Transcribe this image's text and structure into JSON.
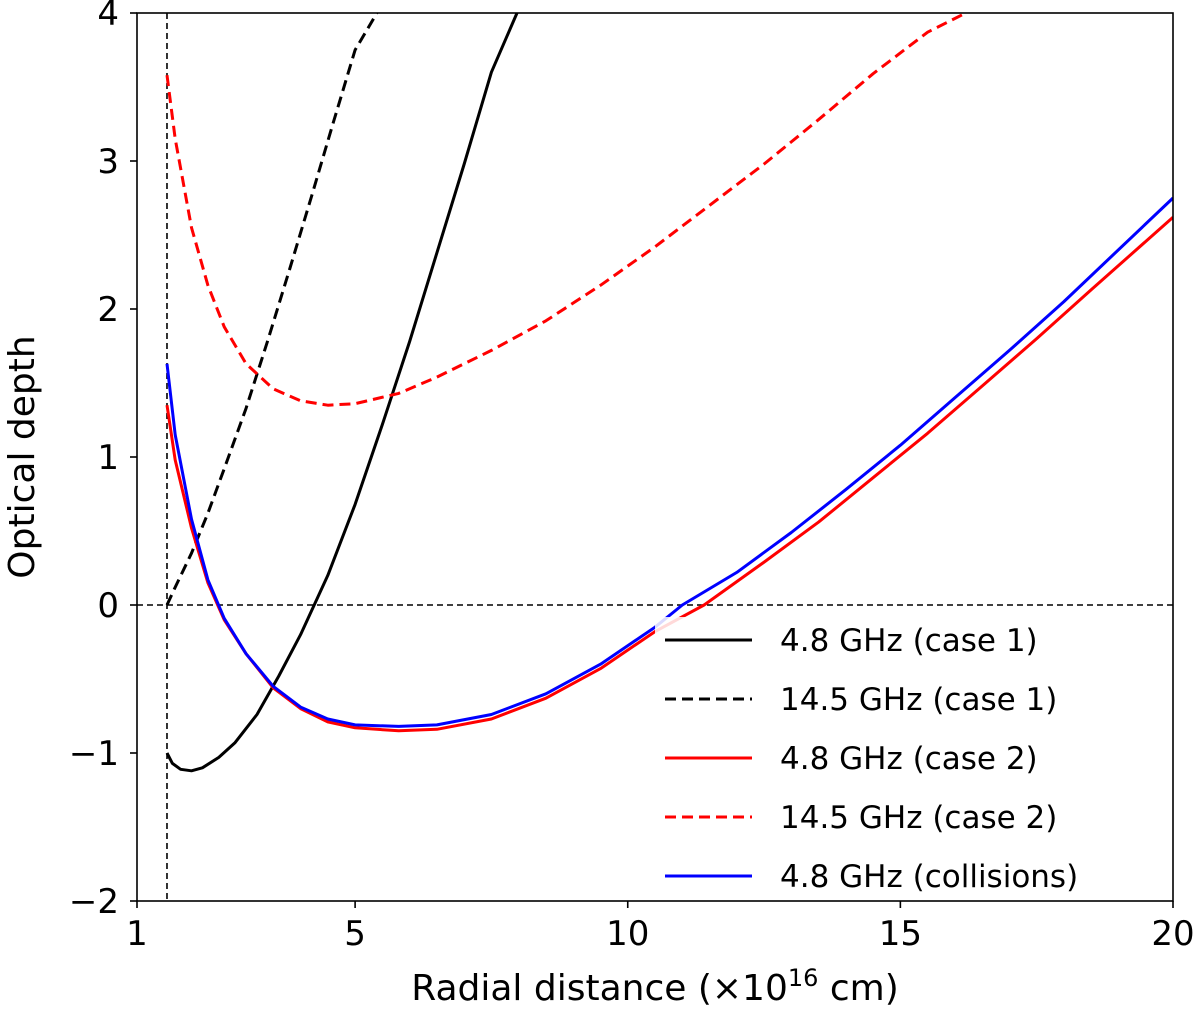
{
  "chart_data": {
    "type": "line",
    "title": "",
    "xlabel_main": "Radial distance (×10",
    "xlabel_exp": "16",
    "xlabel_unit": " cm)",
    "ylabel": "Optical depth",
    "xlim": [
      1,
      20
    ],
    "ylim": [
      -2,
      4
    ],
    "xticks": [
      1,
      5,
      10,
      15,
      20
    ],
    "xtick_labels": [
      "1",
      "5",
      "10",
      "15",
      "20"
    ],
    "yticks": [
      -2,
      -1,
      0,
      1,
      2,
      3,
      4
    ],
    "ytick_labels": [
      "−2",
      "−1",
      "0",
      "1",
      "2",
      "3",
      "4"
    ],
    "grid": false,
    "legend_placement": "bottom-right",
    "reference_lines": [
      {
        "name": "zero-line",
        "orientation": "horizontal",
        "value": 0,
        "color": "#000000",
        "dashed": true
      },
      {
        "name": "inner-boundary-line",
        "orientation": "vertical",
        "value": 1.55,
        "color": "#000000",
        "dashed": true
      }
    ],
    "series": [
      {
        "name": "4.8 GHz (case 1)",
        "color": "#000000",
        "dashed": false,
        "x": [
          1.55,
          1.65,
          1.8,
          2.0,
          2.2,
          2.5,
          2.8,
          3.2,
          3.6,
          4.0,
          4.5,
          5.0,
          5.5,
          6.0,
          6.5,
          7.0,
          7.5,
          7.97
        ],
        "y": [
          -1.0,
          -1.07,
          -1.11,
          -1.12,
          -1.1,
          -1.03,
          -0.93,
          -0.74,
          -0.48,
          -0.2,
          0.2,
          0.68,
          1.22,
          1.78,
          2.38,
          2.98,
          3.6,
          4.0
        ]
      },
      {
        "name": "14.5 GHz (case 1)",
        "color": "#000000",
        "dashed": true,
        "x": [
          1.55,
          1.7,
          2.0,
          2.3,
          2.6,
          3.0,
          3.4,
          3.8,
          4.2,
          4.6,
          5.0,
          5.4
        ],
        "y": [
          0.0,
          0.12,
          0.35,
          0.62,
          0.92,
          1.33,
          1.79,
          2.27,
          2.76,
          3.26,
          3.75,
          4.0
        ]
      },
      {
        "name": "4.8 GHz (case 2)",
        "color": "#ff0000",
        "dashed": false,
        "x": [
          1.55,
          1.7,
          2.0,
          2.3,
          2.6,
          3.0,
          3.5,
          4.0,
          4.5,
          5.0,
          5.8,
          6.5,
          7.5,
          8.5,
          9.5,
          10.5,
          11.4,
          12.5,
          13.5,
          14.5,
          15.5,
          16.5,
          17.5,
          18.5,
          20.0
        ],
        "y": [
          1.35,
          0.98,
          0.52,
          0.15,
          -0.1,
          -0.33,
          -0.56,
          -0.7,
          -0.79,
          -0.83,
          -0.85,
          -0.84,
          -0.77,
          -0.63,
          -0.43,
          -0.18,
          0.0,
          0.29,
          0.56,
          0.86,
          1.16,
          1.48,
          1.8,
          2.13,
          2.62
        ]
      },
      {
        "name": "14.5 GHz (case 2)",
        "color": "#ff0000",
        "dashed": true,
        "x": [
          1.55,
          1.7,
          2.0,
          2.3,
          2.6,
          3.0,
          3.5,
          4.0,
          4.5,
          5.0,
          5.8,
          6.5,
          7.5,
          8.5,
          9.5,
          10.5,
          11.5,
          12.5,
          13.5,
          14.5,
          15.5,
          16.2
        ],
        "y": [
          3.58,
          3.15,
          2.55,
          2.16,
          1.88,
          1.63,
          1.46,
          1.38,
          1.35,
          1.36,
          1.43,
          1.54,
          1.72,
          1.92,
          2.16,
          2.42,
          2.7,
          2.98,
          3.28,
          3.59,
          3.87,
          4.0
        ]
      },
      {
        "name": "4.8 GHz (collisions)",
        "color": "#0000ff",
        "dashed": false,
        "x": [
          1.55,
          1.7,
          2.0,
          2.3,
          2.6,
          3.0,
          3.5,
          4.0,
          4.5,
          5.0,
          5.8,
          6.5,
          7.5,
          8.5,
          9.5,
          10.5,
          11.0,
          12.0,
          13.0,
          14.0,
          15.0,
          16.0,
          17.0,
          18.0,
          20.0
        ],
        "y": [
          1.63,
          1.15,
          0.58,
          0.17,
          -0.09,
          -0.33,
          -0.55,
          -0.69,
          -0.77,
          -0.81,
          -0.82,
          -0.81,
          -0.74,
          -0.6,
          -0.4,
          -0.15,
          0.0,
          0.22,
          0.49,
          0.78,
          1.08,
          1.4,
          1.72,
          2.05,
          2.75
        ]
      }
    ]
  }
}
